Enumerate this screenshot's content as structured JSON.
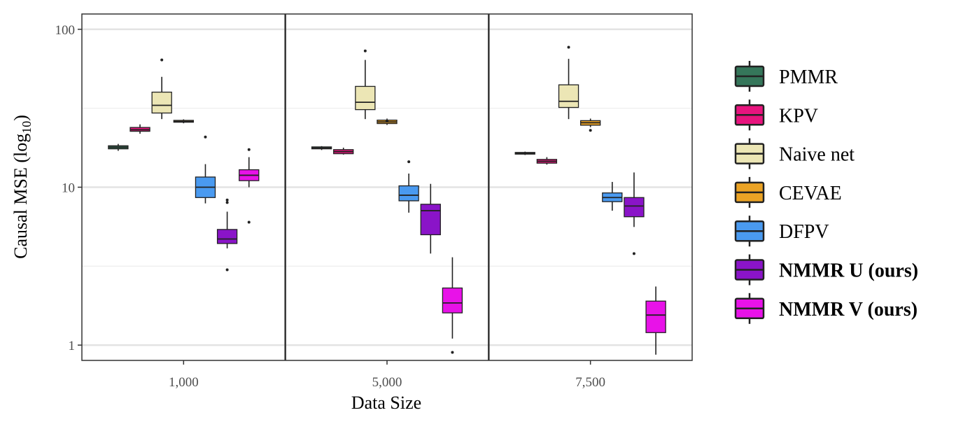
{
  "chart_data": {
    "type": "boxplot",
    "title": "",
    "xlabel": "Data Size",
    "ylabel": "Causal MSE (log",
    "ylabel_sub": "10",
    "ylabel_close": ")",
    "yscale": "log10",
    "ylim": [
      0.8,
      125
    ],
    "yticks": [
      1,
      10,
      100
    ],
    "ytick_labels": [
      "1",
      "10",
      "100"
    ],
    "grid": true,
    "legend_position": "right",
    "categories": [
      "1,000",
      "5,000",
      "7,500"
    ],
    "series": [
      {
        "name": "PMMR",
        "color": "#35765a",
        "bold": false,
        "boxes": [
          {
            "whislo": 17.0,
            "q1": 17.5,
            "med": 17.9,
            "q3": 18.3,
            "whishi": 18.8,
            "outliers": []
          },
          {
            "whislo": 17.2,
            "q1": 17.5,
            "med": 17.7,
            "q3": 18.0,
            "whishi": 18.2,
            "outliers": []
          },
          {
            "whislo": 16.0,
            "q1": 16.2,
            "med": 16.4,
            "q3": 16.6,
            "whishi": 16.8,
            "outliers": []
          }
        ]
      },
      {
        "name": "KPV",
        "color": "#e8147e",
        "bold": false,
        "boxes": [
          {
            "whislo": 21.8,
            "q1": 22.6,
            "med": 23.1,
            "q3": 23.9,
            "whishi": 25.0,
            "outliers": []
          },
          {
            "whislo": 16.1,
            "q1": 16.3,
            "med": 16.8,
            "q3": 17.3,
            "whishi": 17.8,
            "outliers": []
          },
          {
            "whislo": 13.9,
            "q1": 14.2,
            "med": 14.6,
            "q3": 15.0,
            "whishi": 15.5,
            "outliers": []
          }
        ]
      },
      {
        "name": "Naive net",
        "color": "#ece6b5",
        "bold": false,
        "boxes": [
          {
            "whislo": 27.0,
            "q1": 29.5,
            "med": 33.0,
            "q3": 40.0,
            "whishi": 50.0,
            "outliers": [
              64
            ]
          },
          {
            "whislo": 27.0,
            "q1": 31.0,
            "med": 34.5,
            "q3": 43.5,
            "whishi": 64.0,
            "outliers": [
              73
            ]
          },
          {
            "whislo": 27.0,
            "q1": 32.0,
            "med": 35.0,
            "q3": 44.5,
            "whishi": 65.0,
            "outliers": [
              77
            ]
          }
        ]
      },
      {
        "name": "CEVAE",
        "color": "#eba325",
        "bold": false,
        "boxes": [
          {
            "whislo": 25.4,
            "q1": 25.8,
            "med": 26.1,
            "q3": 26.5,
            "whishi": 26.9,
            "outliers": []
          },
          {
            "whislo": 24.8,
            "q1": 25.3,
            "med": 25.9,
            "q3": 26.6,
            "whishi": 27.2,
            "outliers": [
              26.2
            ]
          },
          {
            "whislo": 24.0,
            "q1": 24.7,
            "med": 25.6,
            "q3": 26.4,
            "whishi": 27.2,
            "outliers": [
              22.9
            ]
          }
        ]
      },
      {
        "name": "DFPV",
        "color": "#4a9af0",
        "bold": false,
        "boxes": [
          {
            "whislo": 7.9,
            "q1": 8.6,
            "med": 10.0,
            "q3": 11.6,
            "whishi": 14.0,
            "outliers": [
              20.8
            ]
          },
          {
            "whislo": 6.9,
            "q1": 8.2,
            "med": 8.9,
            "q3": 10.2,
            "whishi": 12.2,
            "outliers": [
              14.5
            ]
          },
          {
            "whislo": 7.1,
            "q1": 8.1,
            "med": 8.6,
            "q3": 9.2,
            "whishi": 10.8,
            "outliers": []
          }
        ]
      },
      {
        "name": "NMMR U (ours)",
        "color": "#8a14c8",
        "bold": true,
        "boxes": [
          {
            "whislo": 4.1,
            "q1": 4.4,
            "med": 4.7,
            "q3": 5.4,
            "whishi": 7.0,
            "outliers": [
              8.0,
              8.3,
              3.0
            ]
          },
          {
            "whislo": 3.8,
            "q1": 5.0,
            "med": 7.1,
            "q3": 7.8,
            "whishi": 10.5,
            "outliers": []
          },
          {
            "whislo": 5.6,
            "q1": 6.5,
            "med": 7.6,
            "q3": 8.6,
            "whishi": 12.4,
            "outliers": [
              3.8
            ]
          }
        ]
      },
      {
        "name": "NMMR V (ours)",
        "color": "#e812e8",
        "bold": true,
        "boxes": [
          {
            "whislo": 10.0,
            "q1": 11.0,
            "med": 11.9,
            "q3": 12.9,
            "whishi": 15.5,
            "outliers": [
              17.3,
              6.0
            ]
          },
          {
            "whislo": 1.1,
            "q1": 1.6,
            "med": 1.85,
            "q3": 2.3,
            "whishi": 3.6,
            "outliers": [
              0.9
            ]
          },
          {
            "whislo": 0.87,
            "q1": 1.2,
            "med": 1.55,
            "q3": 1.9,
            "whishi": 2.35,
            "outliers": []
          }
        ]
      }
    ]
  }
}
